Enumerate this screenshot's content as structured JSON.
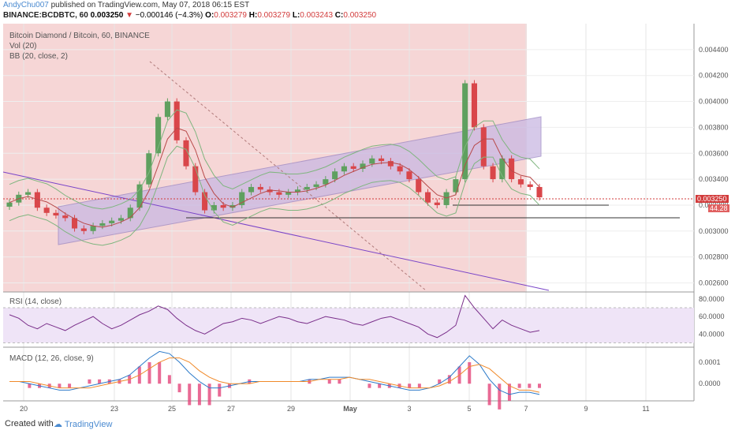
{
  "header": {
    "author": "AndyChu007",
    "published": "published on TradingView.com, May 07, 2018 06:15 EST",
    "symbol": "BINANCE:BCDBTC, 60",
    "last": "0.003250",
    "arrow": "▼",
    "change": "−0.000146 (−4.3%)",
    "o_label": "O:",
    "o": "0.003279",
    "h_label": "H:",
    "h": "0.003279",
    "l_label": "L:",
    "l": "0.003243",
    "c_label": "C:",
    "c": "0.003250"
  },
  "legend": {
    "title": "Bitcoin Diamond / Bitcoin, 60, BINANCE",
    "vol": "Vol (20)",
    "bb": "BB (20, close, 2)",
    "rsi": "RSI (14, close)",
    "macd": "MACD (12, 26, close, 9)"
  },
  "price_tag": "0.003250",
  "rsi_tag": "44.28",
  "footer": {
    "created": "Created with",
    "brand": "TradingView"
  },
  "colors": {
    "bg_shade": "#f3c8c8",
    "channel": "#c9b8e2",
    "up": "#5fa05f",
    "down": "#d9464a",
    "bb": "#7fb57f",
    "ma": "#b84a4a",
    "trend": "#7a45c8",
    "rsi": "#7a2f8a",
    "macd": "#2c7ac9",
    "signal": "#f08a2a",
    "hist": "#e3457a"
  },
  "chart_data": [
    {
      "type": "line",
      "title": "Bitcoin Diamond / Bitcoin, 60, BINANCE",
      "x_ticks": [
        "20",
        "23",
        "25",
        "27",
        "29",
        "May",
        "3",
        "5",
        "7",
        "9",
        "11"
      ],
      "y_ticks": [
        "0.004400",
        "0.004200",
        "0.004000",
        "0.003800",
        "0.003600",
        "0.003400",
        "0.003200",
        "0.003000",
        "0.002800",
        "0.002600"
      ],
      "ylim": [
        0.00253,
        0.0046
      ],
      "series": [
        {
          "name": "close",
          "values": [
            0.00322,
            0.00328,
            0.0033,
            0.00318,
            0.00314,
            0.00312,
            0.0031,
            0.00302,
            0.003,
            0.00304,
            0.00306,
            0.00308,
            0.0031,
            0.00318,
            0.00336,
            0.0036,
            0.00388,
            0.004,
            0.0037,
            0.0035,
            0.0033,
            0.00316,
            0.0032,
            0.00318,
            0.0032,
            0.0033,
            0.00334,
            0.00332,
            0.0033,
            0.00328,
            0.0033,
            0.00332,
            0.00334,
            0.00336,
            0.0034,
            0.00346,
            0.0035,
            0.00348,
            0.00352,
            0.00356,
            0.00354,
            0.0035,
            0.00346,
            0.0034,
            0.0033,
            0.00322,
            0.0032,
            0.0033,
            0.0034,
            0.00414,
            0.0038,
            0.0035,
            0.0034,
            0.00356,
            0.0034,
            0.00336,
            0.00334,
            0.00326
          ]
        }
      ]
    },
    {
      "type": "line",
      "title": "RSI (14, close)",
      "y_ticks": [
        "80.0000",
        "60.0000",
        "40.0000"
      ],
      "ylim": [
        25,
        88
      ],
      "series": [
        {
          "name": "RSI",
          "values": [
            62,
            58,
            50,
            46,
            52,
            48,
            44,
            50,
            55,
            60,
            52,
            46,
            50,
            56,
            62,
            66,
            72,
            68,
            58,
            50,
            44,
            40,
            46,
            52,
            54,
            58,
            56,
            52,
            56,
            60,
            58,
            54,
            52,
            56,
            60,
            58,
            56,
            52,
            50,
            54,
            58,
            60,
            56,
            52,
            48,
            40,
            36,
            42,
            50,
            84,
            70,
            58,
            46,
            56,
            50,
            46,
            42,
            44
          ]
        }
      ]
    },
    {
      "type": "line",
      "title": "MACD (12, 26, close, 9)",
      "y_ticks": [
        "0.0001",
        "0.0000"
      ],
      "ylim": [
        -8e-05,
        0.00017
      ],
      "series": [
        {
          "name": "MACD",
          "values": [
            1e-05,
            1e-05,
            0.0,
            -1e-05,
            -2e-05,
            -3e-05,
            -3e-05,
            -2e-05,
            -1e-05,
            0.0,
            1e-05,
            2e-05,
            4e-05,
            8e-05,
            0.00012,
            0.00015,
            0.00014,
            0.0001,
            5e-05,
            1e-05,
            -2e-05,
            -2e-05,
            -1e-05,
            0.0,
            1e-05,
            1e-05,
            1e-05,
            1e-05,
            1e-05,
            1e-05,
            2e-05,
            2e-05,
            3e-05,
            3e-05,
            3e-05,
            2e-05,
            1e-05,
            0.0,
            -1e-05,
            -2e-05,
            -3e-05,
            -3e-05,
            -2e-05,
            0.0,
            3e-05,
            8e-05,
            0.00013,
            9e-05,
            2e-05,
            -3e-05,
            -5e-05,
            -4e-05,
            -4e-05,
            -5e-05
          ]
        },
        {
          "name": "Signal",
          "values": [
            1e-05,
            1e-05,
            1e-05,
            0.0,
            -1e-05,
            -2e-05,
            -2e-05,
            -2e-05,
            -2e-05,
            -1e-05,
            0.0,
            1e-05,
            2e-05,
            4e-05,
            7e-05,
            0.0001,
            0.00012,
            0.00012,
            0.0001,
            6e-05,
            3e-05,
            1e-05,
            0.0,
            0.0,
            0.0,
            1e-05,
            1e-05,
            1e-05,
            1e-05,
            1e-05,
            1e-05,
            2e-05,
            2e-05,
            2e-05,
            3e-05,
            2e-05,
            2e-05,
            1e-05,
            0.0,
            -1e-05,
            -2e-05,
            -2e-05,
            -2e-05,
            -1e-05,
            1e-05,
            4e-05,
            8e-05,
            9e-05,
            7e-05,
            3e-05,
            -1e-05,
            -3e-05,
            -3e-05,
            -4e-05
          ]
        }
      ]
    }
  ]
}
